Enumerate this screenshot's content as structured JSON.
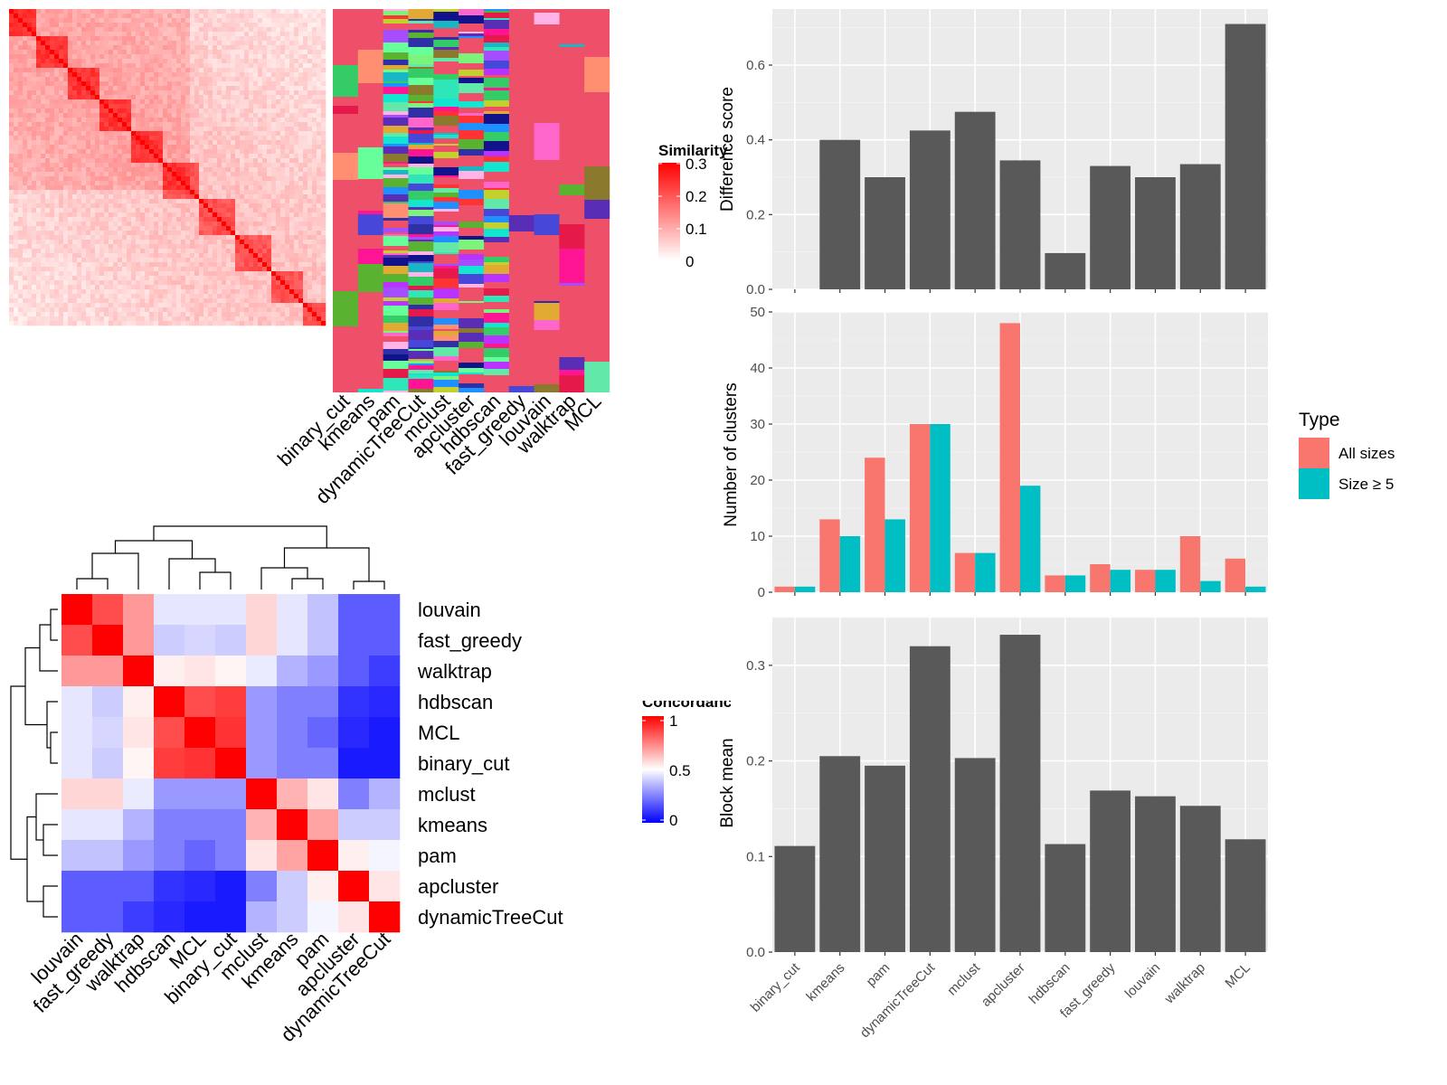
{
  "chart_data": [
    {
      "type": "heatmap",
      "id": "similarity",
      "legend_title": "Similarity",
      "legend_ticks": [
        "0.3",
        "0.2",
        "0.1",
        "0"
      ],
      "colors": {
        "low": "#ffffff",
        "high": "#ff0000"
      },
      "annotation_columns": [
        "binary_cut",
        "kmeans",
        "pam",
        "dynamicTreeCut",
        "mclust",
        "apcluster",
        "hdbscan",
        "fast_greedy",
        "louvain",
        "walktrap",
        "MCL"
      ],
      "annotation_base_color": "#ef5069"
    },
    {
      "type": "heatmap",
      "id": "concordance",
      "legend_title": "Concordance",
      "legend_ticks": [
        "1",
        "0.5",
        "0"
      ],
      "rows": [
        "louvain",
        "fast_greedy",
        "walktrap",
        "hdbscan",
        "MCL",
        "binary_cut",
        "mclust",
        "kmeans",
        "pam",
        "apcluster",
        "dynamicTreeCut"
      ],
      "cols": [
        "louvain",
        "fast_greedy",
        "walktrap",
        "hdbscan",
        "MCL",
        "binary_cut",
        "mclust",
        "kmeans",
        "pam",
        "apcluster",
        "dynamicTreeCut"
      ],
      "values": [
        [
          1.0,
          0.85,
          0.7,
          0.45,
          0.45,
          0.45,
          0.58,
          0.45,
          0.38,
          0.18,
          0.18
        ],
        [
          0.85,
          1.0,
          0.7,
          0.4,
          0.42,
          0.4,
          0.58,
          0.45,
          0.38,
          0.18,
          0.18
        ],
        [
          0.7,
          0.7,
          1.0,
          0.53,
          0.55,
          0.52,
          0.46,
          0.35,
          0.3,
          0.18,
          0.12
        ],
        [
          0.45,
          0.4,
          0.53,
          1.0,
          0.85,
          0.88,
          0.3,
          0.25,
          0.25,
          0.1,
          0.08
        ],
        [
          0.45,
          0.42,
          0.55,
          0.85,
          1.0,
          0.9,
          0.3,
          0.25,
          0.2,
          0.08,
          0.05
        ],
        [
          0.45,
          0.4,
          0.52,
          0.88,
          0.9,
          1.0,
          0.3,
          0.25,
          0.25,
          0.05,
          0.05
        ],
        [
          0.58,
          0.58,
          0.46,
          0.3,
          0.3,
          0.3,
          1.0,
          0.65,
          0.55,
          0.25,
          0.35
        ],
        [
          0.45,
          0.45,
          0.35,
          0.25,
          0.25,
          0.25,
          0.65,
          1.0,
          0.68,
          0.4,
          0.4
        ],
        [
          0.38,
          0.38,
          0.3,
          0.25,
          0.2,
          0.25,
          0.55,
          0.68,
          1.0,
          0.53,
          0.48
        ],
        [
          0.18,
          0.18,
          0.18,
          0.1,
          0.08,
          0.05,
          0.25,
          0.4,
          0.53,
          1.0,
          0.55
        ],
        [
          0.18,
          0.18,
          0.12,
          0.08,
          0.05,
          0.05,
          0.35,
          0.4,
          0.48,
          0.55,
          1.0
        ]
      ],
      "colors": {
        "low": "#0000ff",
        "mid": "#ffffff",
        "high": "#ff0000"
      }
    },
    {
      "type": "bar",
      "id": "difference",
      "categories": [
        "binary_cut",
        "kmeans",
        "pam",
        "dynamicTreeCut",
        "mclust",
        "apcluster",
        "hdbscan",
        "fast_greedy",
        "louvain",
        "walktrap",
        "MCL"
      ],
      "values": [
        0.0,
        0.4,
        0.3,
        0.425,
        0.475,
        0.345,
        0.097,
        0.33,
        0.3,
        0.335,
        0.71
      ],
      "ylabel": "Difference score",
      "ylim": [
        0,
        0.75
      ],
      "yticks": [
        "0.0",
        "0.2",
        "0.4",
        "0.6"
      ],
      "grid": true
    },
    {
      "type": "bar",
      "id": "clusters",
      "categories": [
        "binary_cut",
        "kmeans",
        "pam",
        "dynamicTreeCut",
        "mclust",
        "apcluster",
        "hdbscan",
        "fast_greedy",
        "louvain",
        "walktrap",
        "MCL"
      ],
      "series": [
        {
          "name": "All sizes",
          "color": "#f8766d",
          "values": [
            1,
            13,
            24,
            30,
            7,
            48,
            3,
            5,
            4,
            10,
            6
          ]
        },
        {
          "name": "Size ≥ 5",
          "color": "#00bfc4",
          "values": [
            1,
            10,
            13,
            30,
            7,
            19,
            3,
            4,
            4,
            2,
            1
          ]
        }
      ],
      "ylabel": "Number of clusters",
      "ylim": [
        0,
        50
      ],
      "yticks": [
        "0",
        "10",
        "20",
        "30",
        "40",
        "50"
      ],
      "legend_title": "Type",
      "legend_position": "right",
      "grid": true
    },
    {
      "type": "bar",
      "id": "blockmean",
      "categories": [
        "binary_cut",
        "kmeans",
        "pam",
        "dynamicTreeCut",
        "mclust",
        "apcluster",
        "hdbscan",
        "fast_greedy",
        "louvain",
        "walktrap",
        "MCL"
      ],
      "values": [
        0.111,
        0.205,
        0.195,
        0.32,
        0.203,
        0.332,
        0.113,
        0.169,
        0.163,
        0.153,
        0.118
      ],
      "ylabel": "Block mean",
      "ylim": [
        0,
        0.35
      ],
      "yticks": [
        "0.0",
        "0.1",
        "0.2",
        "0.3"
      ],
      "grid": true
    }
  ]
}
